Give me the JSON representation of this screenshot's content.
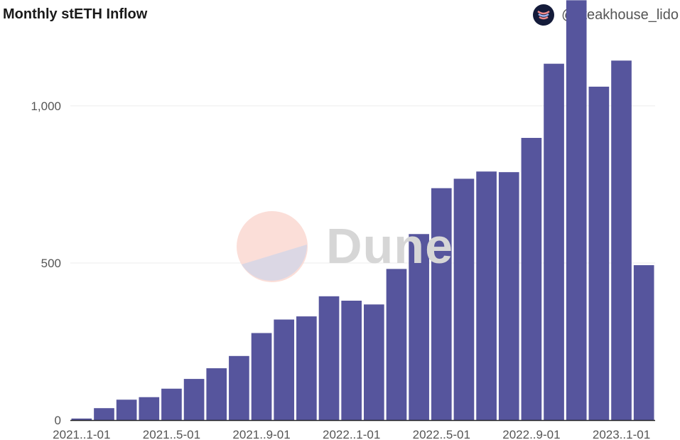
{
  "header": {
    "title": "Monthly stETH Inflow",
    "author_handle": "@steakhouse_lido",
    "author_icon": "steakhouse-logo-icon"
  },
  "watermark": {
    "text": "Dune",
    "icon": "dune-logo-icon"
  },
  "colors": {
    "bar": "#56559d",
    "grid": "#ececec",
    "axis": "#222222",
    "tick_text": "#555555"
  },
  "chart_data": {
    "type": "bar",
    "title": "Monthly stETH Inflow",
    "xlabel": "",
    "ylabel": "",
    "ylim": [
      0,
      1330
    ],
    "y_ticks": [
      0,
      500,
      1000
    ],
    "y_tick_labels": [
      "0",
      "500",
      "1,000"
    ],
    "x_tick_labels": [
      "2021..1-01",
      "2021..5-01",
      "2021..9-01",
      "2022..1-01",
      "2022..5-01",
      "2022..9-01",
      "2023..1-01"
    ],
    "x_tick_category_index": [
      0,
      4,
      8,
      12,
      16,
      20,
      24
    ],
    "grid": true,
    "categories": [
      "2021-01",
      "2021-02",
      "2021-03",
      "2021-04",
      "2021-05",
      "2021-06",
      "2021-07",
      "2021-08",
      "2021-09",
      "2021-10",
      "2021-11",
      "2021-12",
      "2022-01",
      "2022-02",
      "2022-03",
      "2022-04",
      "2022-05",
      "2022-06",
      "2022-07",
      "2022-08",
      "2022-09",
      "2022-10",
      "2022-11",
      "2022-12",
      "2023-01",
      "2023-02"
    ],
    "values": [
      5,
      38,
      65,
      73,
      100,
      131,
      165,
      204,
      277,
      320,
      330,
      394,
      380,
      368,
      481,
      592,
      738,
      768,
      791,
      789,
      898,
      1134,
      1336,
      1061,
      1144,
      493
    ]
  }
}
